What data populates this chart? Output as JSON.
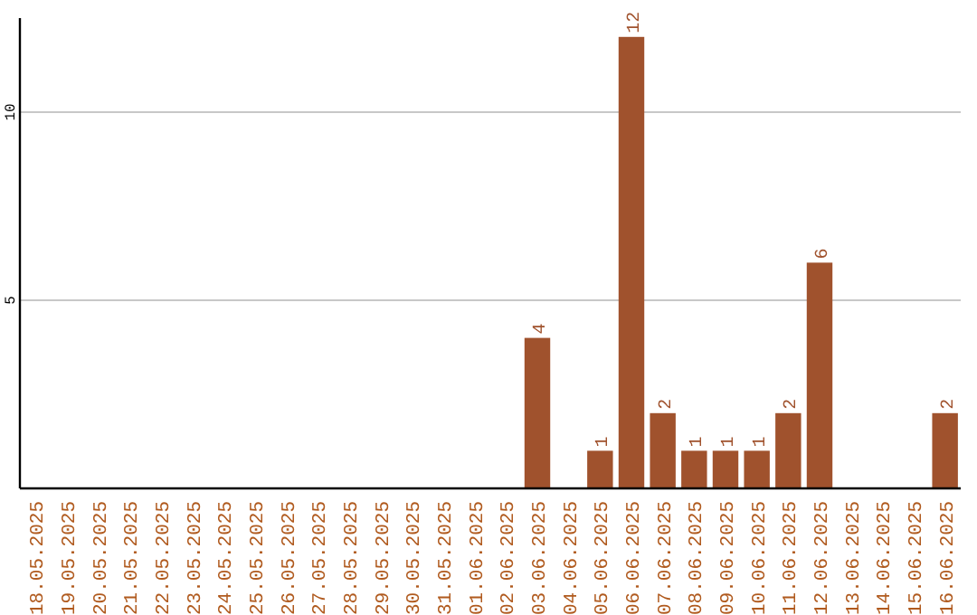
{
  "chart_data": {
    "type": "bar",
    "categories": [
      "18.05.2025",
      "19.05.2025",
      "20.05.2025",
      "21.05.2025",
      "22.05.2025",
      "23.05.2025",
      "24.05.2025",
      "25.05.2025",
      "26.05.2025",
      "27.05.2025",
      "28.05.2025",
      "29.05.2025",
      "30.05.2025",
      "31.05.2025",
      "01.06.2025",
      "02.06.2025",
      "03.06.2025",
      "04.06.2025",
      "05.06.2025",
      "06.06.2025",
      "07.06.2025",
      "08.06.2025",
      "09.06.2025",
      "10.06.2025",
      "11.06.2025",
      "12.06.2025",
      "13.06.2025",
      "14.06.2025",
      "15.06.2025",
      "16.06.2025"
    ],
    "values": [
      0,
      0,
      0,
      0,
      0,
      0,
      0,
      0,
      0,
      0,
      0,
      0,
      0,
      0,
      0,
      0,
      4,
      0,
      1,
      12,
      2,
      1,
      1,
      1,
      2,
      6,
      0,
      0,
      0,
      2
    ],
    "value_labels": [
      null,
      null,
      null,
      null,
      null,
      null,
      null,
      null,
      null,
      null,
      null,
      null,
      null,
      null,
      null,
      null,
      "4",
      null,
      "1",
      "12",
      "2",
      "1",
      "1",
      "1",
      "2",
      "6",
      null,
      null,
      null,
      "2"
    ],
    "color": "#a0522d",
    "ylim": [
      0,
      12.5
    ],
    "yticks": [
      5,
      10
    ],
    "grid": "y"
  }
}
